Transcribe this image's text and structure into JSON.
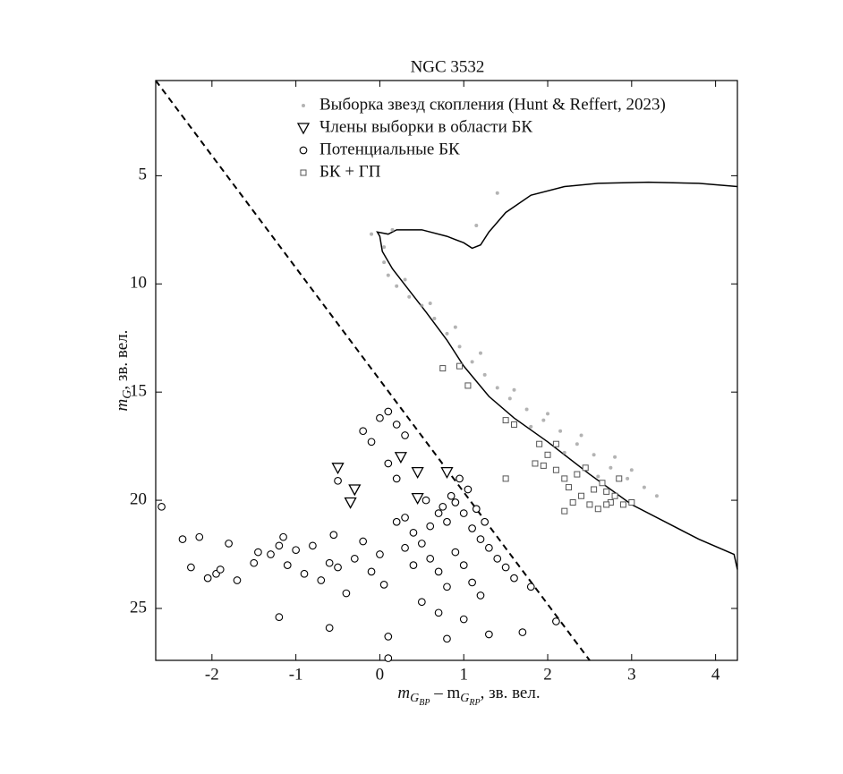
{
  "chart_data": {
    "type": "scatter",
    "title": "NGC 3532",
    "xlabel": [
      {
        "text": "m",
        "sub": 0
      },
      {
        "text": "G",
        "sub": 1
      },
      {
        "text": "BP",
        "sub": 2
      },
      {
        "text": " – m",
        "sub": 0
      },
      {
        "text": "G",
        "sub": 1
      },
      {
        "text": "RP",
        "sub": 2
      },
      {
        "text": ", зв. вел.",
        "sub": 0
      }
    ],
    "ylabel": [
      {
        "text": "m",
        "sub": 0
      },
      {
        "text": "G",
        "sub": 1
      },
      {
        "text": ", зв. вел.",
        "sub": 0
      }
    ],
    "xlim": [
      -2.67,
      4.26
    ],
    "ylim": [
      27.4,
      0.6
    ],
    "xticks": [
      -2,
      -1,
      0,
      1,
      2,
      3,
      4
    ],
    "yticks": [
      5,
      10,
      15,
      20,
      25
    ],
    "series": [
      {
        "name": "Выборка звезд скопления (Hunt & Reffert, 2023)",
        "marker": "dot",
        "color": "#9a9a9a",
        "x": [
          -0.1,
          0.05,
          0.05,
          0.1,
          0.2,
          0.35,
          0.5,
          0.65,
          0.8,
          0.95,
          1.1,
          1.25,
          1.4,
          1.55,
          1.75,
          1.95,
          2.15,
          2.35,
          2.55,
          2.75,
          2.95,
          3.15,
          3.3,
          1.4,
          1.15,
          0.3,
          0.6,
          0.9,
          1.2,
          1.6,
          2.0,
          2.4,
          2.8,
          3.0,
          2.2,
          2.6,
          1.8,
          0.15
        ],
        "y": [
          7.7,
          8.3,
          9.0,
          9.6,
          10.1,
          10.6,
          11.0,
          11.6,
          12.3,
          12.9,
          13.6,
          14.2,
          14.8,
          15.3,
          15.8,
          16.3,
          16.8,
          17.4,
          17.9,
          18.5,
          19.0,
          19.4,
          19.8,
          5.8,
          7.3,
          9.8,
          10.9,
          12.0,
          13.2,
          14.9,
          16.0,
          17.0,
          18.0,
          18.6,
          17.8,
          18.9,
          16.6,
          7.5
        ]
      },
      {
        "name": "Члены выборки в области БК",
        "marker": "triangle",
        "color": "#000000",
        "x": [
          -0.5,
          0.25,
          -0.3,
          -0.35,
          0.45,
          0.45,
          0.8
        ],
        "y": [
          18.5,
          18.0,
          19.5,
          20.1,
          18.7,
          19.9,
          18.7
        ]
      },
      {
        "name": "Потенциальные БК",
        "marker": "circle",
        "color": "#000000",
        "x": [
          -2.6,
          -2.35,
          -2.15,
          -2.25,
          -2.05,
          -1.95,
          -1.9,
          -1.8,
          -1.7,
          -1.5,
          -1.45,
          -1.3,
          -1.2,
          -1.15,
          -1.1,
          -1.0,
          -0.9,
          -0.8,
          -0.7,
          -0.6,
          -0.55,
          -0.5,
          -0.4,
          -0.3,
          -0.2,
          -0.1,
          0.0,
          0.05,
          0.1,
          0.1,
          -1.2,
          -0.6,
          -0.1,
          0.0,
          0.1,
          0.2,
          0.3,
          -0.2,
          0.1,
          0.2,
          -0.5,
          0.3,
          0.4,
          0.5,
          0.6,
          0.7,
          0.8,
          0.9,
          1.0,
          1.1,
          1.2,
          1.3,
          1.4,
          1.5,
          1.6,
          0.6,
          0.7,
          0.8,
          0.9,
          1.0,
          1.1,
          1.2,
          0.5,
          0.7,
          1.0,
          1.3,
          1.7,
          1.8,
          2.1,
          0.8,
          0.4,
          0.3,
          0.2,
          1.05,
          0.95,
          0.85,
          0.75,
          1.15,
          1.25,
          0.55
        ],
        "y": [
          20.3,
          21.8,
          21.7,
          23.1,
          23.6,
          23.4,
          23.2,
          22.0,
          23.7,
          22.9,
          22.4,
          22.5,
          22.1,
          21.7,
          23.0,
          22.3,
          23.4,
          22.1,
          23.7,
          22.9,
          21.6,
          23.1,
          24.3,
          22.7,
          21.9,
          23.3,
          22.5,
          23.9,
          26.3,
          27.3,
          25.4,
          25.9,
          17.3,
          16.2,
          15.9,
          16.5,
          17.0,
          16.8,
          18.3,
          19.0,
          19.1,
          20.8,
          21.5,
          22.0,
          21.2,
          20.6,
          21.0,
          20.1,
          20.6,
          21.3,
          21.8,
          22.2,
          22.7,
          23.1,
          23.6,
          22.7,
          23.3,
          24.0,
          22.4,
          23.0,
          23.8,
          24.4,
          24.7,
          25.2,
          25.5,
          26.2,
          26.1,
          24.0,
          25.6,
          26.4,
          23.0,
          22.2,
          21.0,
          19.5,
          19.0,
          19.8,
          20.3,
          20.4,
          21.0,
          20.0
        ]
      },
      {
        "name": "БК + ГП",
        "marker": "square",
        "color": "#555555",
        "x": [
          0.75,
          1.05,
          0.95,
          1.6,
          1.5,
          1.9,
          2.0,
          1.95,
          1.85,
          1.5,
          2.1,
          2.2,
          2.35,
          2.25,
          2.4,
          2.5,
          2.55,
          2.65,
          2.7,
          2.75,
          2.8,
          2.6,
          2.3,
          2.2,
          2.9,
          3.0,
          2.45,
          2.85,
          2.1,
          2.7
        ],
        "y": [
          13.9,
          14.7,
          13.8,
          16.5,
          16.3,
          17.4,
          17.9,
          18.4,
          18.3,
          19.0,
          18.6,
          19.0,
          18.8,
          19.4,
          19.8,
          20.2,
          19.5,
          19.2,
          19.6,
          20.1,
          19.8,
          20.4,
          20.1,
          20.5,
          20.2,
          20.1,
          18.5,
          19.0,
          17.4,
          20.2
        ]
      }
    ],
    "lines": [
      {
        "style": "dashed",
        "color": "#000000",
        "x": [
          -2.67,
          2.5
        ],
        "y": [
          0.6,
          27.4
        ]
      },
      {
        "style": "solid",
        "color": "#000000",
        "x": [
          4.26,
          4.22,
          3.8,
          3.0,
          2.5,
          2.0,
          1.6,
          1.3,
          1.0,
          0.8,
          0.55,
          0.35,
          0.15,
          0.03,
          0.0,
          -0.03,
          0.1,
          0.2,
          0.5,
          0.8,
          1.0,
          1.1,
          1.2,
          1.3,
          1.5,
          1.8,
          2.2,
          2.6,
          3.2,
          3.8,
          4.26
        ],
        "y": [
          23.2,
          22.5,
          21.8,
          20.2,
          18.8,
          17.3,
          16.2,
          15.2,
          13.8,
          12.6,
          11.3,
          10.3,
          9.3,
          8.5,
          7.8,
          7.6,
          7.7,
          7.5,
          7.5,
          7.8,
          8.1,
          8.35,
          8.2,
          7.6,
          6.7,
          5.9,
          5.5,
          5.35,
          5.3,
          5.35,
          5.5
        ]
      }
    ]
  }
}
